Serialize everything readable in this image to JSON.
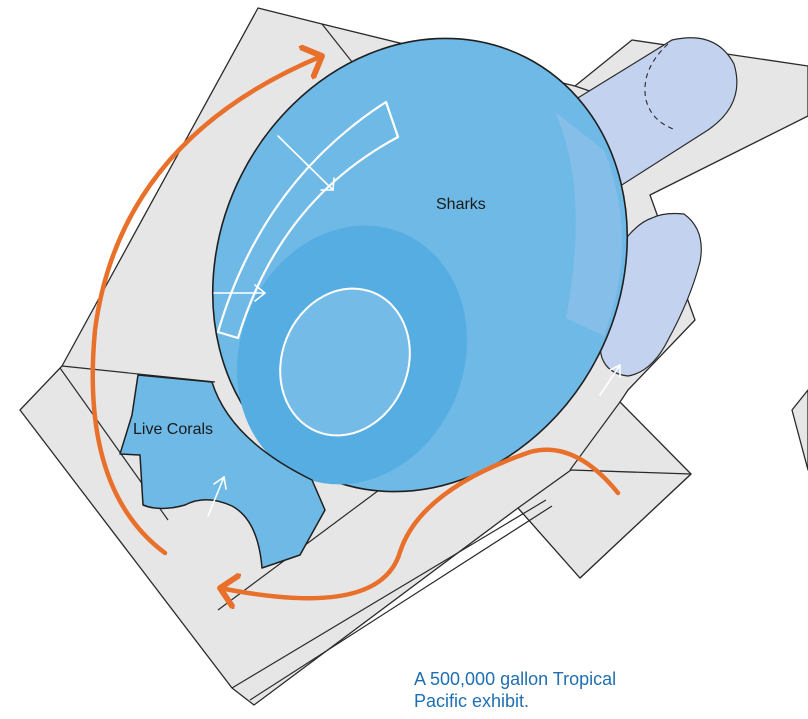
{
  "labels": {
    "sharks": "Sharks",
    "corals": "Live Corals"
  },
  "caption": {
    "line1": "A 500,000 gallon Tropical",
    "line2": "Pacific exhibit."
  },
  "colors": {
    "floor": "#e6e6e6",
    "outline": "#2a2a2a",
    "tank": "#6fb9e6",
    "tank_deep": "#56ade2",
    "tank_inner": "#74bbe8",
    "annex": "#c3d2ee",
    "path_arrow": "#e8702a",
    "caption_text": "#1f6fb2"
  },
  "icons": [
    "visitor-path-arrow",
    "view-direction-arrow"
  ]
}
